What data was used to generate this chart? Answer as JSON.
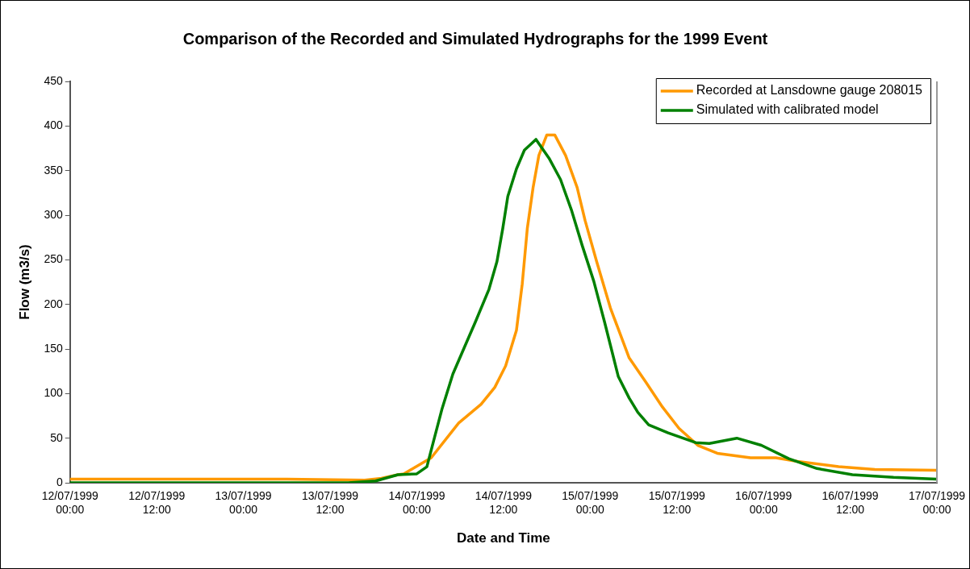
{
  "chart_data": {
    "type": "line",
    "title": "Comparison of the Recorded and Simulated Hydrographs for the 1999 Event",
    "xlabel": "Date and Time",
    "ylabel": "Flow (m3/s)",
    "xlim": [
      "1999-07-12T00:00",
      "1999-07-17T00:00"
    ],
    "xticks": [
      {
        "value": "1999-07-12T00:00",
        "label": "12/07/1999 00:00"
      },
      {
        "value": "1999-07-12T12:00",
        "label": "12/07/1999 12:00"
      },
      {
        "value": "1999-07-13T00:00",
        "label": "13/07/1999 00:00"
      },
      {
        "value": "1999-07-13T12:00",
        "label": "13/07/1999 12:00"
      },
      {
        "value": "1999-07-14T00:00",
        "label": "14/07/1999 00:00"
      },
      {
        "value": "1999-07-14T12:00",
        "label": "14/07/1999 12:00"
      },
      {
        "value": "1999-07-15T00:00",
        "label": "15/07/1999 00:00"
      },
      {
        "value": "1999-07-15T12:00",
        "label": "15/07/1999 12:00"
      },
      {
        "value": "1999-07-16T00:00",
        "label": "16/07/1999 00:00"
      },
      {
        "value": "1999-07-16T12:00",
        "label": "16/07/1999 12:00"
      },
      {
        "value": "1999-07-17T00:00",
        "label": "17/07/1999 00:00"
      }
    ],
    "ylim": [
      0,
      450
    ],
    "yticks": [
      0,
      50,
      100,
      150,
      200,
      250,
      300,
      350,
      400,
      450
    ],
    "grid": false,
    "legend": "top right",
    "marker": "none",
    "line_style": "solid",
    "series": [
      {
        "name": "Recorded at Lansdowne gauge 208015",
        "color": "#ff9900",
        "x": [
          "1999-07-12T00:00",
          "1999-07-12T20:00",
          "1999-07-13T06:00",
          "1999-07-13T16:48",
          "1999-07-13T19:06",
          "1999-07-13T21:24",
          "1999-07-13T22:12",
          "1999-07-14T02:00",
          "1999-07-14T05:48",
          "1999-07-14T08:54",
          "1999-07-14T10:48",
          "1999-07-14T12:18",
          "1999-07-14T13:48",
          "1999-07-14T14:36",
          "1999-07-14T15:18",
          "1999-07-14T16:06",
          "1999-07-14T16:54",
          "1999-07-14T18:00",
          "1999-07-14T19:06",
          "1999-07-14T20:36",
          "1999-07-14T22:12",
          "1999-07-14T23:18",
          "1999-07-15T00:54",
          "1999-07-15T02:48",
          "1999-07-15T05:24",
          "1999-07-15T07:42",
          "1999-07-15T10:00",
          "1999-07-15T12:18",
          "1999-07-15T14:54",
          "1999-07-15T17:36",
          "1999-07-15T22:12",
          "1999-07-16T01:42",
          "1999-07-16T04:42",
          "1999-07-16T10:24",
          "1999-07-16T15:24",
          "1999-07-17T00:00"
        ],
        "values": [
          4,
          4,
          4,
          3,
          5,
          9,
          10,
          28,
          67,
          88,
          107,
          131,
          171,
          223,
          285,
          331,
          367,
          390,
          390,
          367,
          331,
          294,
          248,
          196,
          140,
          113,
          85,
          61,
          42,
          33,
          28,
          28,
          24,
          18,
          15,
          14
        ]
      },
      {
        "name": "Simulated with calibrated model",
        "color": "#008000",
        "x": [
          "1999-07-12T00:00",
          "1999-07-13T14:30",
          "1999-07-13T18:18",
          "1999-07-13T21:24",
          "1999-07-14T00:00",
          "1999-07-14T01:24",
          "1999-07-14T02:18",
          "1999-07-14T03:30",
          "1999-07-14T05:00",
          "1999-07-14T06:36",
          "1999-07-14T08:06",
          "1999-07-14T10:00",
          "1999-07-14T11:06",
          "1999-07-14T11:54",
          "1999-07-14T12:36",
          "1999-07-14T13:48",
          "1999-07-14T14:54",
          "1999-07-14T16:30",
          "1999-07-14T18:18",
          "1999-07-14T19:54",
          "1999-07-14T21:24",
          "1999-07-14T22:54",
          "1999-07-15T00:30",
          "1999-07-15T02:00",
          "1999-07-15T03:54",
          "1999-07-15T05:24",
          "1999-07-15T06:36",
          "1999-07-15T08:06",
          "1999-07-15T10:48",
          "1999-07-15T14:36",
          "1999-07-15T16:30",
          "1999-07-15T20:18",
          "1999-07-15T23:42",
          "1999-07-16T03:30",
          "1999-07-16T07:24",
          "1999-07-16T12:18",
          "1999-07-16T18:00",
          "1999-07-17T00:00"
        ],
        "values": [
          0,
          0,
          2,
          9,
          10,
          18,
          46,
          83,
          122,
          152,
          180,
          217,
          248,
          285,
          321,
          352,
          373,
          385,
          364,
          340,
          306,
          266,
          226,
          180,
          119,
          95,
          79,
          65,
          56,
          45,
          44,
          50,
          42,
          27,
          16,
          9,
          6,
          4
        ]
      }
    ]
  }
}
